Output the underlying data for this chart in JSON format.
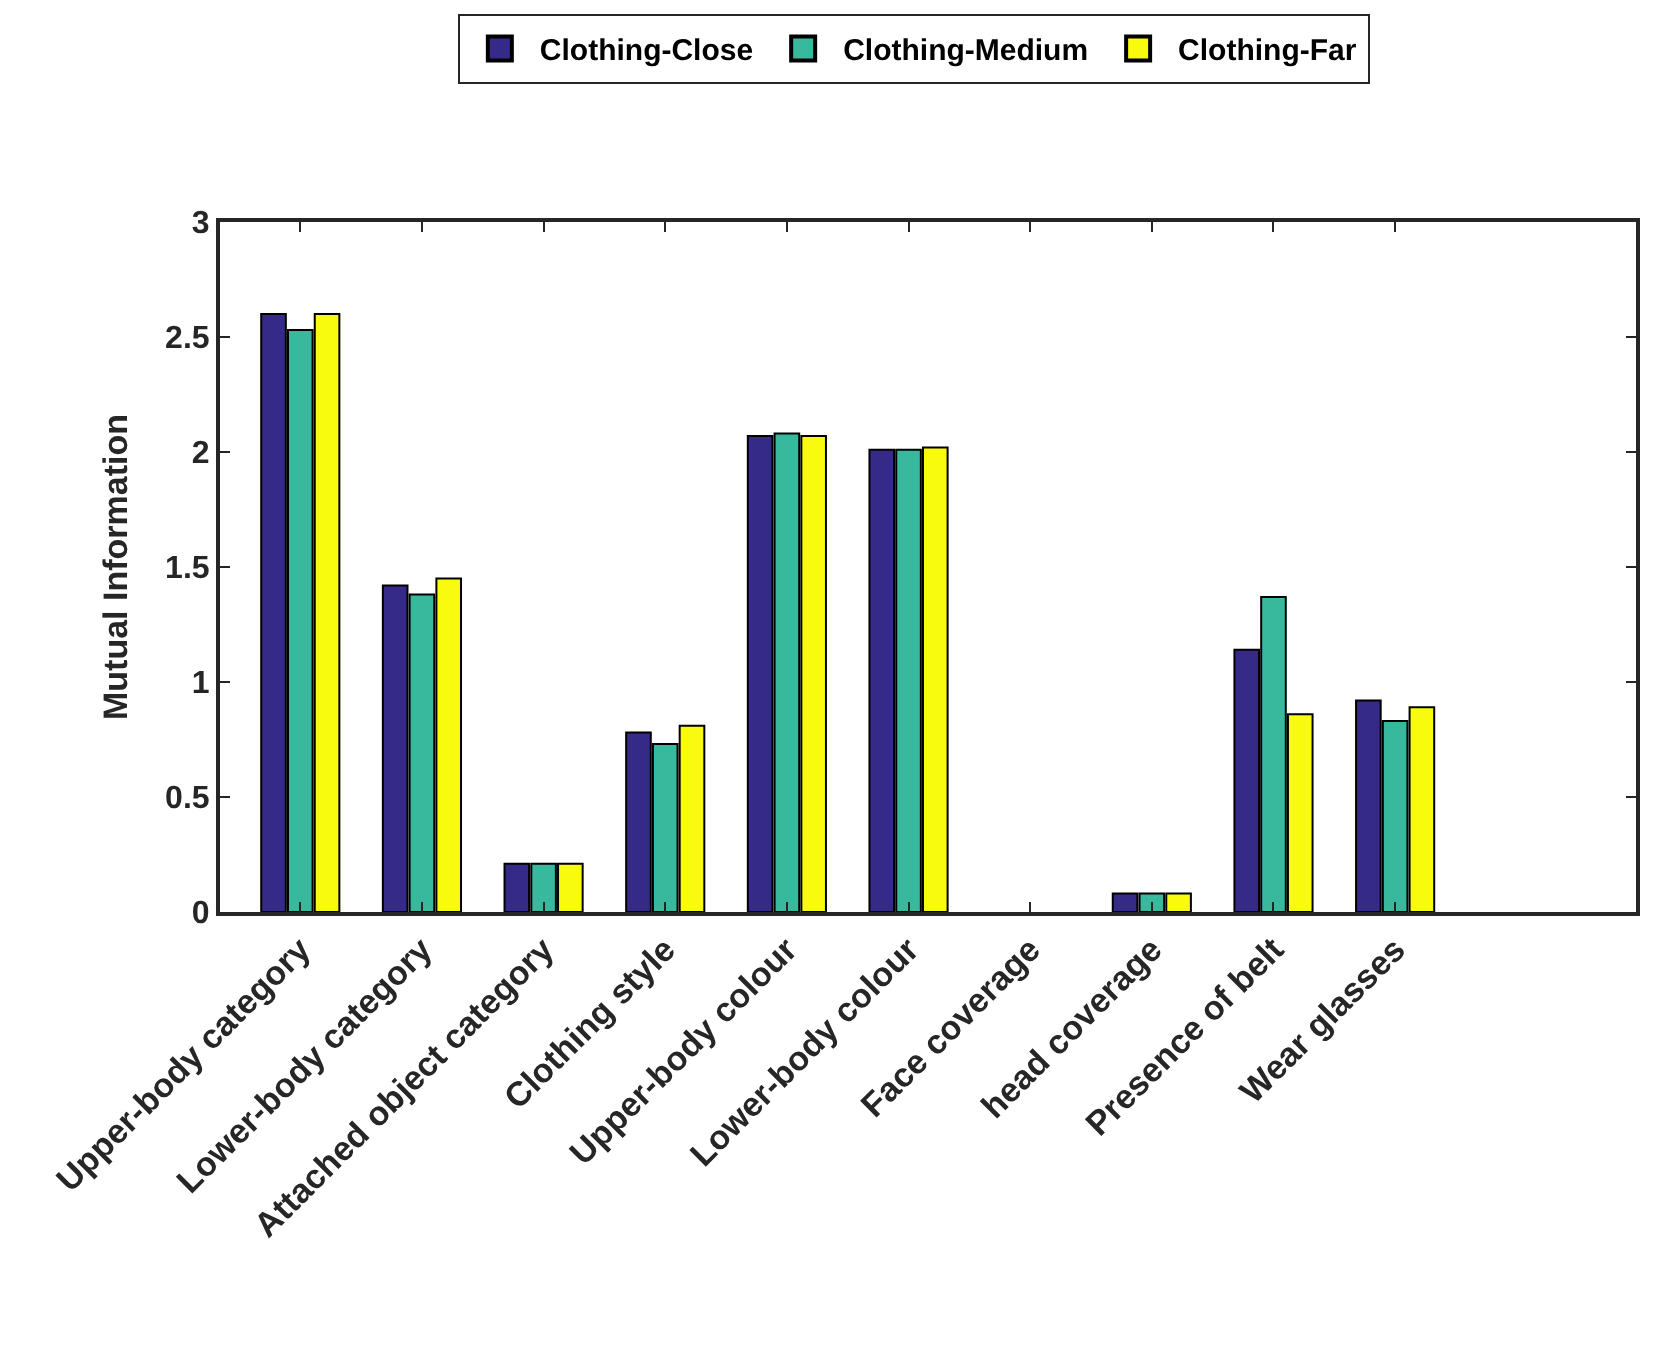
{
  "chart_data": {
    "type": "bar",
    "ylabel": "Mutual Information",
    "categories": [
      "Upper-body category",
      "Lower-body category",
      "Attached object category",
      "Clothing style",
      "Upper-body colour",
      "Lower-body colour",
      "Face coverage",
      "head coverage",
      "Presence of belt",
      "Wear glasses"
    ],
    "series": [
      {
        "name": "Clothing-Close",
        "color": "#352a87",
        "values": [
          2.6,
          1.42,
          0.21,
          0.78,
          2.07,
          2.01,
          0,
          0.08,
          1.14,
          0.92
        ]
      },
      {
        "name": "Clothing-Medium",
        "color": "#38b99e",
        "values": [
          2.53,
          1.38,
          0.21,
          0.73,
          2.08,
          2.01,
          0,
          0.08,
          1.37,
          0.83
        ]
      },
      {
        "name": "Clothing-Far",
        "color": "#f9fb0e",
        "values": [
          2.6,
          1.45,
          0.21,
          0.81,
          2.07,
          2.02,
          0,
          0.08,
          0.86,
          0.89
        ]
      }
    ],
    "ylim": [
      0,
      3
    ],
    "yticks": [
      0,
      0.5,
      1,
      1.5,
      2,
      2.5,
      3
    ],
    "legend": "top"
  }
}
